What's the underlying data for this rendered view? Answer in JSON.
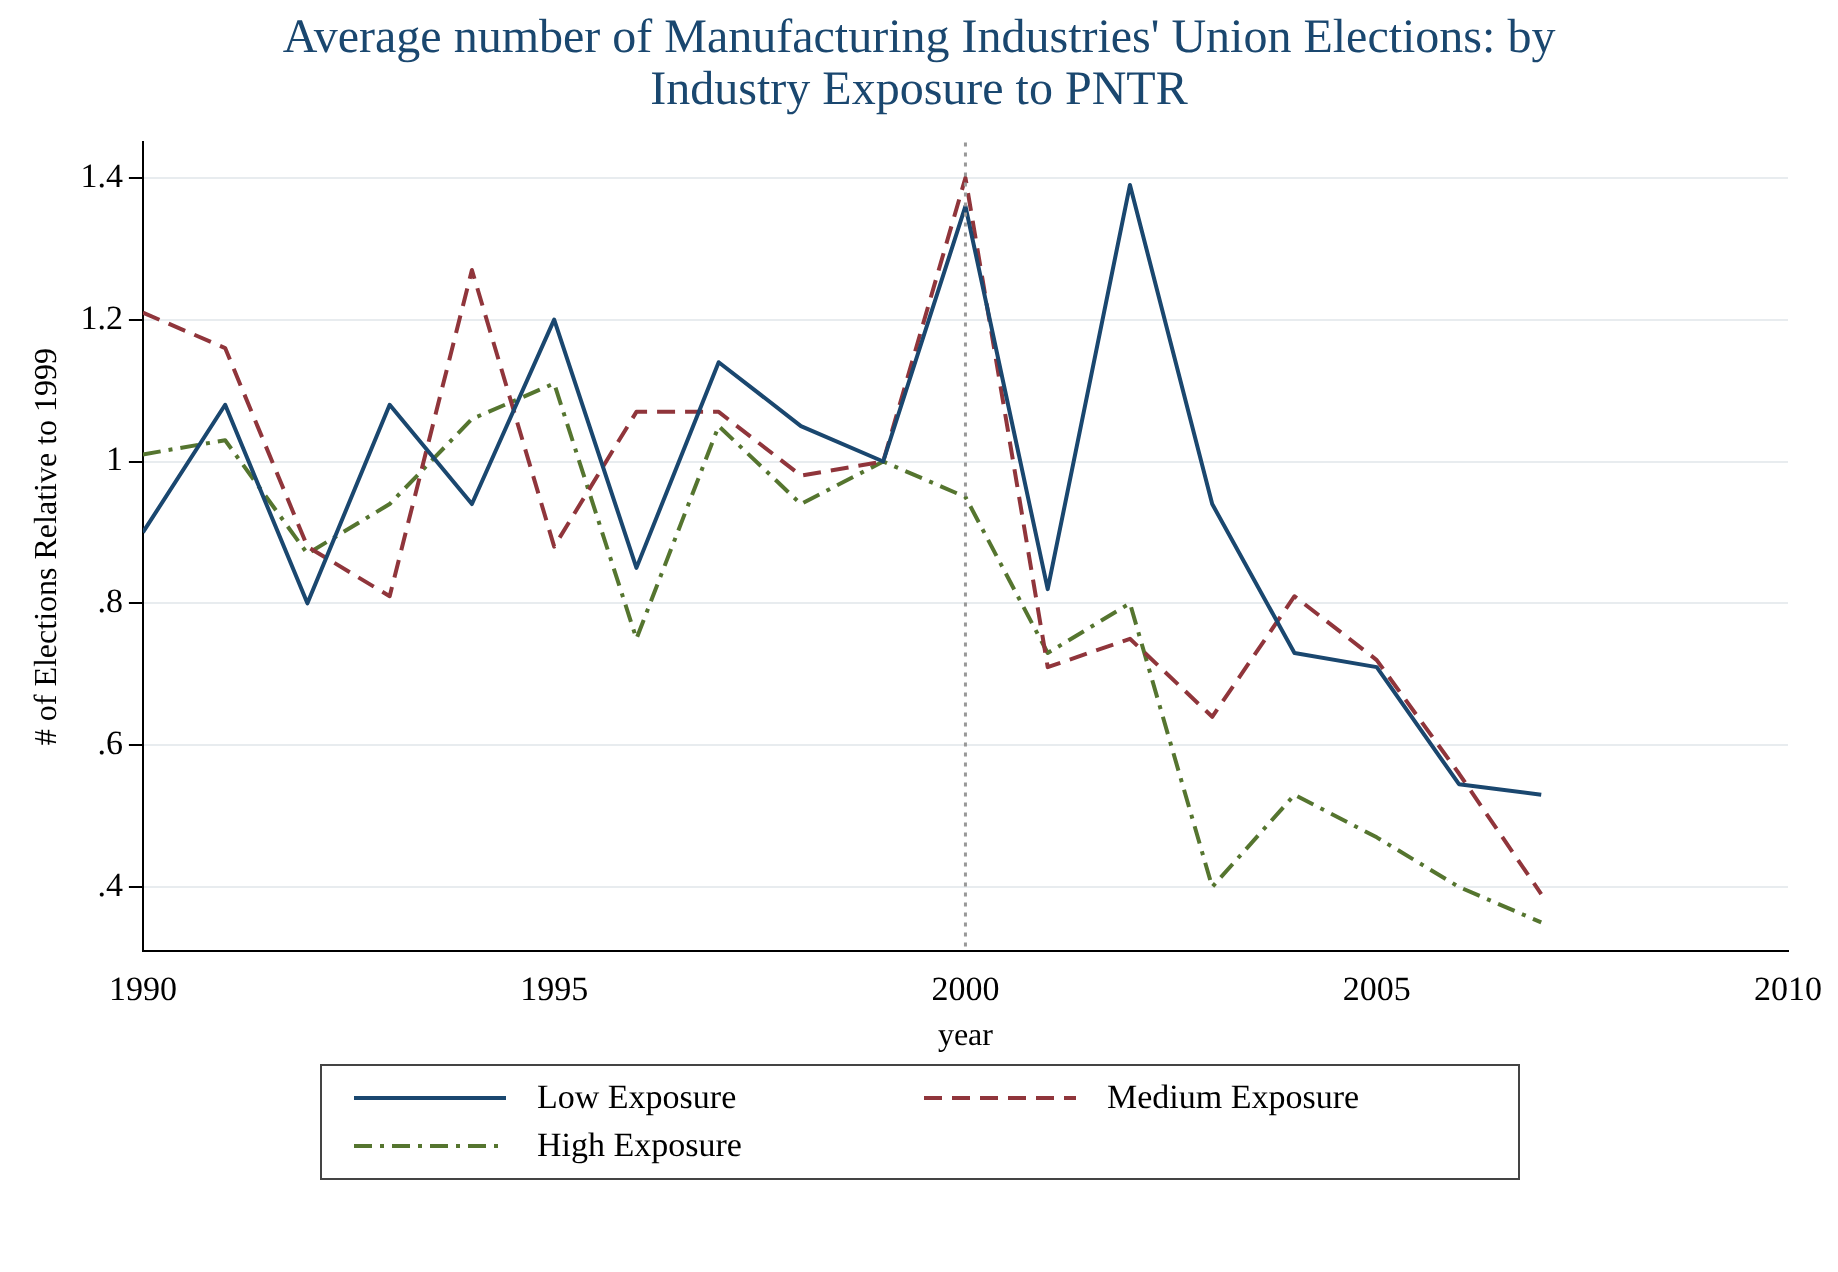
{
  "chart_data": {
    "type": "line",
    "title": "Average number of Manufacturing Industries' Union Elections: by Industry Exposure to PNTR",
    "xlabel": "year",
    "ylabel": "# of Elections Relative to 1999",
    "x": [
      1990,
      1991,
      1992,
      1993,
      1994,
      1995,
      1996,
      1997,
      1998,
      1999,
      2000,
      2001,
      2002,
      2003,
      2004,
      2005,
      2006,
      2007
    ],
    "series": [
      {
        "name": "Low Exposure",
        "color": "#1a476f",
        "line_style": "solid",
        "values": [
          0.9,
          1.08,
          0.8,
          1.08,
          0.94,
          1.2,
          0.85,
          1.14,
          1.05,
          1.0,
          1.36,
          0.82,
          1.39,
          0.94,
          0.73,
          0.71,
          0.545,
          0.53
        ]
      },
      {
        "name": "Medium Exposure",
        "color": "#90353b",
        "line_style": "dashed",
        "values": [
          1.21,
          1.16,
          0.88,
          0.81,
          1.27,
          0.88,
          1.07,
          1.07,
          0.98,
          1.0,
          1.4,
          0.71,
          0.75,
          0.64,
          0.81,
          0.72,
          0.56,
          0.39
        ]
      },
      {
        "name": "High Exposure",
        "color": "#55752f",
        "line_style": "dashdot",
        "values": [
          1.01,
          1.03,
          0.87,
          0.94,
          1.06,
          1.11,
          0.75,
          1.05,
          0.94,
          1.0,
          0.95,
          0.73,
          0.8,
          0.4,
          0.53,
          0.47,
          0.4,
          0.35
        ]
      }
    ],
    "xlim": [
      1990,
      2010
    ],
    "xticks": [
      1990,
      1995,
      2000,
      2005,
      2010
    ],
    "ylim": [
      0.31,
      1.45
    ],
    "yticks": [
      {
        "value": 0.4,
        "label": ".4"
      },
      {
        "value": 0.6,
        "label": ".6"
      },
      {
        "value": 0.8,
        "label": ".8"
      },
      {
        "value": 1,
        "label": "1"
      },
      {
        "value": 1.2,
        "label": "1.2"
      },
      {
        "value": 1.4,
        "label": "1.4"
      }
    ],
    "ref_lines": [
      {
        "axis": "x",
        "value": 2000,
        "color": "#999999",
        "line_style": "dotted"
      }
    ],
    "grid": "y",
    "legend": "bottom",
    "marker": "none"
  }
}
